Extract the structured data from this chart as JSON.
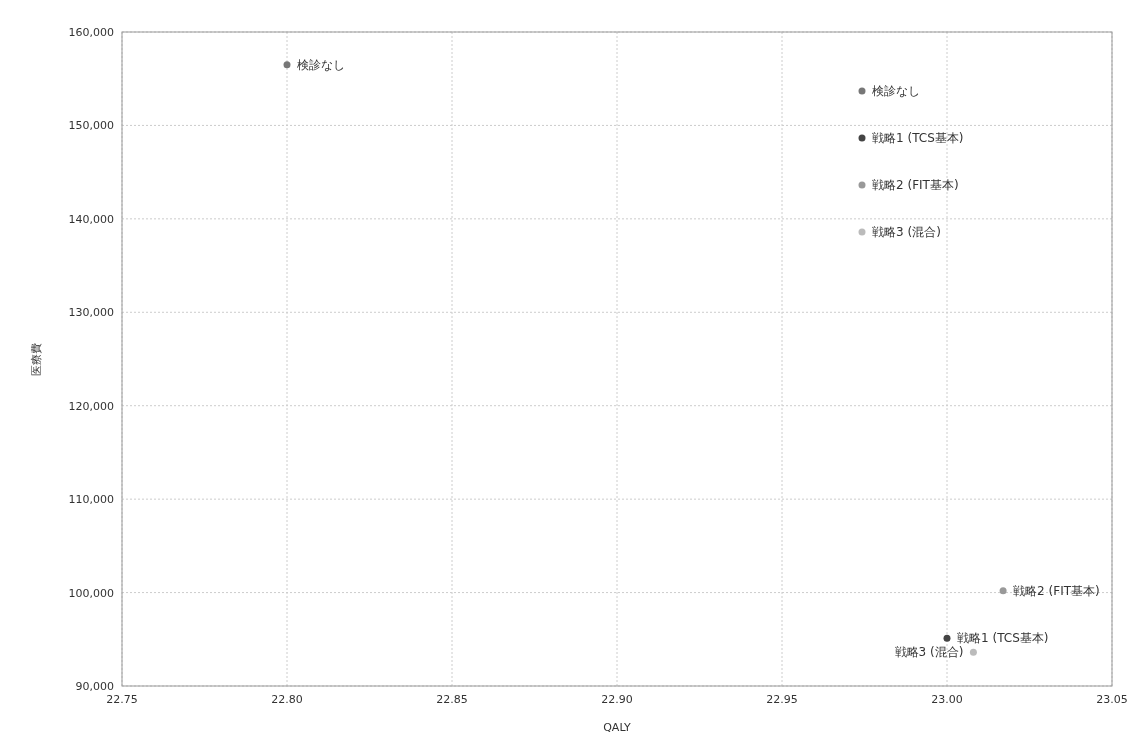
{
  "chart_data": {
    "type": "scatter",
    "xlabel": "QALY",
    "ylabel": "医療費",
    "xlim": [
      22.75,
      23.05
    ],
    "ylim": [
      90000,
      160000
    ],
    "xticks": [
      {
        "value": 22.75,
        "label": "22.75"
      },
      {
        "value": 22.8,
        "label": "22.80"
      },
      {
        "value": 22.85,
        "label": "22.85"
      },
      {
        "value": 22.9,
        "label": "22.90"
      },
      {
        "value": 22.95,
        "label": "22.95"
      },
      {
        "value": 23.0,
        "label": "23.00"
      },
      {
        "value": 23.05,
        "label": "23.05"
      }
    ],
    "yticks": [
      {
        "value": 90000,
        "label": "90,000"
      },
      {
        "value": 100000,
        "label": "100,000"
      },
      {
        "value": 110000,
        "label": "110,000"
      },
      {
        "value": 120000,
        "label": "120,000"
      },
      {
        "value": 130000,
        "label": "130,000"
      },
      {
        "value": 140000,
        "label": "140,000"
      },
      {
        "value": 150000,
        "label": "150,000"
      },
      {
        "value": 160000,
        "label": "160,000"
      }
    ],
    "grid": true,
    "legend": "top right",
    "marker": "circle",
    "series": [
      {
        "name": "検診なし",
        "color": "#777777",
        "x": [
          22.8
        ],
        "values": [
          156500
        ]
      },
      {
        "name": "戦略1 (TCS基本)",
        "color": "#444444",
        "x": [
          23.0
        ],
        "values": [
          95100
        ]
      },
      {
        "name": "戦略2 (FIT基本)",
        "color": "#999999",
        "x": [
          23.017
        ],
        "values": [
          100200
        ]
      },
      {
        "name": "戦略3 (混合)",
        "color": "#bbbbbb",
        "x": [
          23.008
        ],
        "values": [
          93600
        ]
      }
    ]
  }
}
